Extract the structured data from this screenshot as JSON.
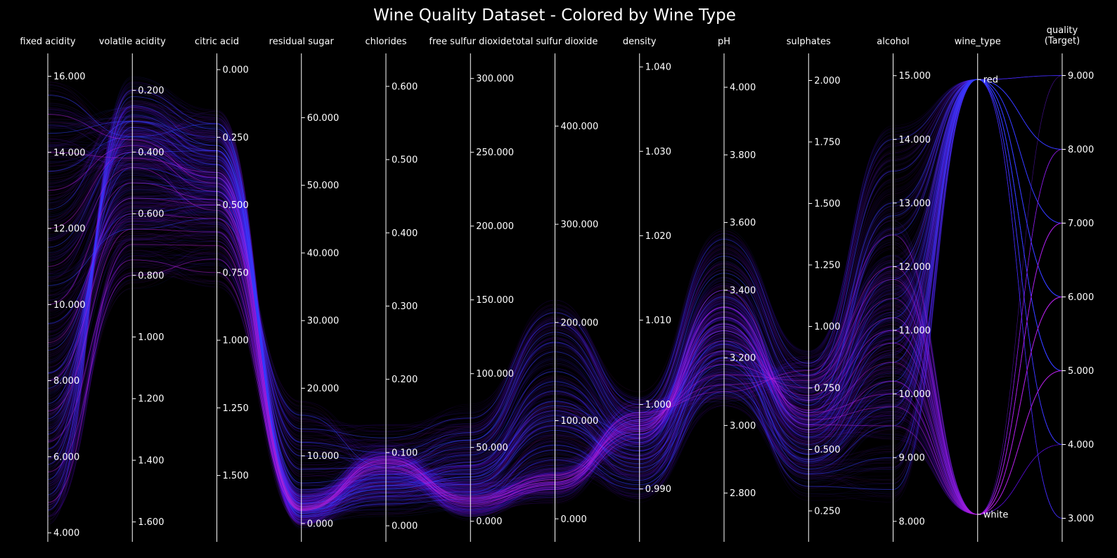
{
  "chart_data": {
    "type": "parallel_coordinates",
    "title": "Wine Quality Dataset - Colored by Wine Type",
    "background": "#000000",
    "axis_color": "#ffffff",
    "series": [
      {
        "color": "#5a10e8"
      },
      {
        "color": "#3340ff"
      },
      {
        "color": "#b020d8"
      }
    ],
    "axes": [
      {
        "name": "fixed acidity",
        "range": [
          3.8,
          16.6
        ],
        "invert": false,
        "ticks": [
          {
            "v": 4,
            "label": "4.000"
          },
          {
            "v": 6,
            "label": "6.000"
          },
          {
            "v": 8,
            "label": "8.000"
          },
          {
            "v": 10,
            "label": "10.000"
          },
          {
            "v": 12,
            "label": "12.000"
          },
          {
            "v": 14,
            "label": "14.000"
          },
          {
            "v": 16,
            "label": "16.000"
          }
        ]
      },
      {
        "name": "volatile acidity",
        "range": [
          0.08,
          1.66
        ],
        "invert": true,
        "ticks": [
          {
            "v": 0.2,
            "label": "0.200"
          },
          {
            "v": 0.4,
            "label": "0.400"
          },
          {
            "v": 0.6,
            "label": "0.600"
          },
          {
            "v": 0.8,
            "label": "0.800"
          },
          {
            "v": 1.0,
            "label": "1.000"
          },
          {
            "v": 1.2,
            "label": "1.200"
          },
          {
            "v": 1.4,
            "label": "1.400"
          },
          {
            "v": 1.6,
            "label": "1.600"
          }
        ]
      },
      {
        "name": "citric acid",
        "range": [
          -0.06,
          1.74
        ],
        "invert": true,
        "ticks": [
          {
            "v": 0,
            "label": "0.000"
          },
          {
            "v": 0.25,
            "label": "0.250"
          },
          {
            "v": 0.5,
            "label": "0.500"
          },
          {
            "v": 0.75,
            "label": "0.750"
          },
          {
            "v": 1.0,
            "label": "1.000"
          },
          {
            "v": 1.25,
            "label": "1.250"
          },
          {
            "v": 1.5,
            "label": "1.500"
          }
        ]
      },
      {
        "name": "residual sugar",
        "range": [
          -2.5,
          69.5
        ],
        "invert": false,
        "ticks": [
          {
            "v": 0,
            "label": "0.000"
          },
          {
            "v": 10,
            "label": "10.000"
          },
          {
            "v": 20,
            "label": "20.000"
          },
          {
            "v": 30,
            "label": "30.000"
          },
          {
            "v": 40,
            "label": "40.000"
          },
          {
            "v": 50,
            "label": "50.000"
          },
          {
            "v": 60,
            "label": "60.000"
          }
        ]
      },
      {
        "name": "chlorides",
        "range": [
          -0.02,
          0.645
        ],
        "invert": false,
        "ticks": [
          {
            "v": 0,
            "label": "0.000"
          },
          {
            "v": 0.1,
            "label": "0.100"
          },
          {
            "v": 0.2,
            "label": "0.200"
          },
          {
            "v": 0.3,
            "label": "0.300"
          },
          {
            "v": 0.4,
            "label": "0.400"
          },
          {
            "v": 0.5,
            "label": "0.500"
          },
          {
            "v": 0.6,
            "label": "0.600"
          }
        ]
      },
      {
        "name": "free sulfur dioxide",
        "range": [
          -13,
          317
        ],
        "invert": false,
        "ticks": [
          {
            "v": 0,
            "label": "0.000"
          },
          {
            "v": 50,
            "label": "50.000"
          },
          {
            "v": 100,
            "label": "100.000"
          },
          {
            "v": 150,
            "label": "150.000"
          },
          {
            "v": 200,
            "label": "200.000"
          },
          {
            "v": 250,
            "label": "250.000"
          },
          {
            "v": 300,
            "label": "300.000"
          }
        ]
      },
      {
        "name": "total sulfur dioxide",
        "range": [
          -22,
          474
        ],
        "invert": false,
        "ticks": [
          {
            "v": 0,
            "label": "0.000"
          },
          {
            "v": 100,
            "label": "100.000"
          },
          {
            "v": 200,
            "label": "200.000"
          },
          {
            "v": 300,
            "label": "300.000"
          },
          {
            "v": 400,
            "label": "400.000"
          }
        ]
      },
      {
        "name": "density",
        "range": [
          0.9839,
          1.0416
        ],
        "invert": false,
        "ticks": [
          {
            "v": 0.99,
            "label": "0.990"
          },
          {
            "v": 1.0,
            "label": "1.000"
          },
          {
            "v": 1.01,
            "label": "1.010"
          },
          {
            "v": 1.02,
            "label": "1.020"
          },
          {
            "v": 1.03,
            "label": "1.030"
          },
          {
            "v": 1.04,
            "label": "1.040"
          }
        ]
      },
      {
        "name": "pH",
        "range": [
          2.66,
          4.1
        ],
        "invert": false,
        "ticks": [
          {
            "v": 2.8,
            "label": "2.800"
          },
          {
            "v": 3.0,
            "label": "3.000"
          },
          {
            "v": 3.2,
            "label": "3.200"
          },
          {
            "v": 3.4,
            "label": "3.400"
          },
          {
            "v": 3.6,
            "label": "3.600"
          },
          {
            "v": 3.8,
            "label": "3.800"
          },
          {
            "v": 4.0,
            "label": "4.000"
          }
        ]
      },
      {
        "name": "sulphates",
        "range": [
          0.13,
          2.11
        ],
        "invert": false,
        "ticks": [
          {
            "v": 0.25,
            "label": "0.250"
          },
          {
            "v": 0.5,
            "label": "0.500"
          },
          {
            "v": 0.75,
            "label": "0.750"
          },
          {
            "v": 1.0,
            "label": "1.000"
          },
          {
            "v": 1.25,
            "label": "1.250"
          },
          {
            "v": 1.5,
            "label": "1.500"
          },
          {
            "v": 1.75,
            "label": "1.750"
          },
          {
            "v": 2.0,
            "label": "2.000"
          }
        ]
      },
      {
        "name": "alcohol",
        "range": [
          7.7,
          15.35
        ],
        "invert": false,
        "ticks": [
          {
            "v": 8,
            "label": "8.000"
          },
          {
            "v": 9,
            "label": "9.000"
          },
          {
            "v": 10,
            "label": "10.000"
          },
          {
            "v": 11,
            "label": "11.000"
          },
          {
            "v": 12,
            "label": "12.000"
          },
          {
            "v": 13,
            "label": "13.000"
          },
          {
            "v": 14,
            "label": "14.000"
          },
          {
            "v": 15,
            "label": "15.000"
          }
        ]
      },
      {
        "name": "wine_type",
        "range": [
          -0.06,
          1.06
        ],
        "invert": true,
        "ticks": [
          {
            "v": 0,
            "label": "red"
          },
          {
            "v": 1,
            "label": "white"
          }
        ]
      },
      {
        "name": "quality (Target)",
        "name_lines": [
          "quality",
          "(Target)"
        ],
        "range": [
          2.7,
          9.3
        ],
        "invert": false,
        "ticks": [
          {
            "v": 3,
            "label": "3.000"
          },
          {
            "v": 4,
            "label": "4.000"
          },
          {
            "v": 5,
            "label": "5.000"
          },
          {
            "v": 6,
            "label": "6.000"
          },
          {
            "v": 7,
            "label": "7.000"
          },
          {
            "v": 8,
            "label": "8.000"
          },
          {
            "v": 9,
            "label": "9.000"
          }
        ]
      }
    ],
    "profiles": [
      [
        4.6,
        0.2,
        0.2,
        1.0,
        0.03,
        15,
        60,
        0.99,
        3.15,
        0.35,
        8.5,
        0,
        3
      ],
      [
        5.0,
        0.22,
        0.22,
        1.2,
        0.035,
        18,
        70,
        0.9905,
        3.1,
        0.4,
        9.0,
        0,
        4
      ],
      [
        5.4,
        0.25,
        0.28,
        1.5,
        0.04,
        20,
        75,
        0.991,
        3.2,
        0.42,
        9.5,
        0,
        5
      ],
      [
        5.8,
        0.28,
        0.3,
        2.0,
        0.045,
        25,
        90,
        0.992,
        3.22,
        0.45,
        10.0,
        0,
        5
      ],
      [
        6.2,
        0.3,
        0.32,
        2.5,
        0.05,
        30,
        100,
        0.993,
        3.25,
        0.5,
        10.5,
        0,
        6
      ],
      [
        6.6,
        0.32,
        0.35,
        3.0,
        0.055,
        35,
        110,
        0.994,
        3.3,
        0.55,
        11.0,
        0,
        6
      ],
      [
        7.0,
        0.35,
        0.38,
        4.0,
        0.06,
        40,
        130,
        0.995,
        3.32,
        0.6,
        11.5,
        0,
        7
      ],
      [
        7.4,
        0.4,
        0.4,
        6.0,
        0.07,
        45,
        150,
        0.996,
        3.35,
        0.65,
        12.0,
        0,
        7
      ],
      [
        7.8,
        0.45,
        0.42,
        8.0,
        0.08,
        50,
        170,
        0.997,
        3.4,
        0.7,
        12.5,
        0,
        8
      ],
      [
        8.2,
        0.5,
        0.45,
        10.0,
        0.09,
        55,
        190,
        0.998,
        3.45,
        0.75,
        13.0,
        0,
        8
      ],
      [
        8.8,
        0.55,
        0.48,
        12.0,
        0.1,
        60,
        200,
        0.999,
        3.5,
        0.8,
        13.5,
        0,
        9
      ],
      [
        9.5,
        0.6,
        0.5,
        14.0,
        0.12,
        70,
        210,
        1.0,
        3.55,
        0.85,
        14.0,
        0,
        8
      ],
      [
        10.5,
        0.65,
        0.55,
        16.0,
        0.08,
        55,
        180,
        0.9975,
        3.38,
        0.68,
        12.8,
        0,
        7
      ],
      [
        11.5,
        0.4,
        0.3,
        5.0,
        0.065,
        38,
        140,
        0.9955,
        3.28,
        0.58,
        11.2,
        0,
        6
      ],
      [
        12.5,
        0.3,
        0.28,
        3.0,
        0.05,
        30,
        120,
        0.9945,
        3.2,
        0.52,
        10.8,
        0,
        5
      ],
      [
        13.5,
        0.35,
        0.3,
        2.0,
        0.06,
        25,
        95,
        0.9935,
        3.18,
        0.48,
        10.2,
        0,
        4
      ],
      [
        14.5,
        0.3,
        0.25,
        1.8,
        0.055,
        28,
        105,
        0.9925,
        3.12,
        0.46,
        9.8,
        0,
        6
      ],
      [
        15.5,
        0.35,
        0.2,
        1.5,
        0.07,
        32,
        115,
        0.9965,
        3.24,
        0.62,
        11.8,
        0,
        5
      ],
      [
        4.8,
        0.7,
        0.65,
        1.9,
        0.08,
        10,
        30,
        0.996,
        3.35,
        0.6,
        9.5,
        1,
        5
      ],
      [
        5.6,
        0.8,
        0.7,
        2.0,
        0.085,
        12,
        35,
        0.9965,
        3.4,
        0.62,
        9.8,
        1,
        5
      ],
      [
        6.4,
        0.75,
        0.75,
        2.2,
        0.09,
        14,
        38,
        0.997,
        3.35,
        0.65,
        10.0,
        1,
        6
      ],
      [
        7.2,
        0.65,
        0.6,
        2.3,
        0.075,
        15,
        42,
        0.9968,
        3.3,
        0.58,
        10.2,
        1,
        5
      ],
      [
        8.0,
        0.6,
        0.55,
        2.5,
        0.08,
        16,
        45,
        0.9972,
        3.32,
        0.64,
        10.5,
        1,
        6
      ],
      [
        9.0,
        0.55,
        0.5,
        2.0,
        0.078,
        14,
        40,
        0.9975,
        3.28,
        0.66,
        10.8,
        1,
        7
      ],
      [
        10.0,
        0.5,
        0.48,
        2.1,
        0.082,
        12,
        36,
        0.9978,
        3.25,
        0.7,
        11.0,
        1,
        6
      ],
      [
        11.0,
        0.45,
        0.52,
        2.4,
        0.088,
        11,
        32,
        0.998,
        3.22,
        0.72,
        11.2,
        1,
        7
      ],
      [
        12.0,
        0.4,
        0.45,
        2.6,
        0.092,
        13,
        34,
        0.9982,
        3.18,
        0.75,
        11.5,
        1,
        5
      ],
      [
        13.0,
        0.38,
        0.4,
        2.8,
        0.095,
        15,
        37,
        0.9985,
        3.15,
        0.78,
        11.8,
        1,
        6
      ],
      [
        14.0,
        0.42,
        0.38,
        2.2,
        0.086,
        17,
        44,
        0.9988,
        3.12,
        0.8,
        12.0,
        1,
        7
      ],
      [
        15.0,
        0.36,
        0.42,
        2.0,
        0.09,
        16,
        40,
        0.999,
        3.1,
        0.82,
        12.5,
        1,
        8
      ]
    ]
  }
}
